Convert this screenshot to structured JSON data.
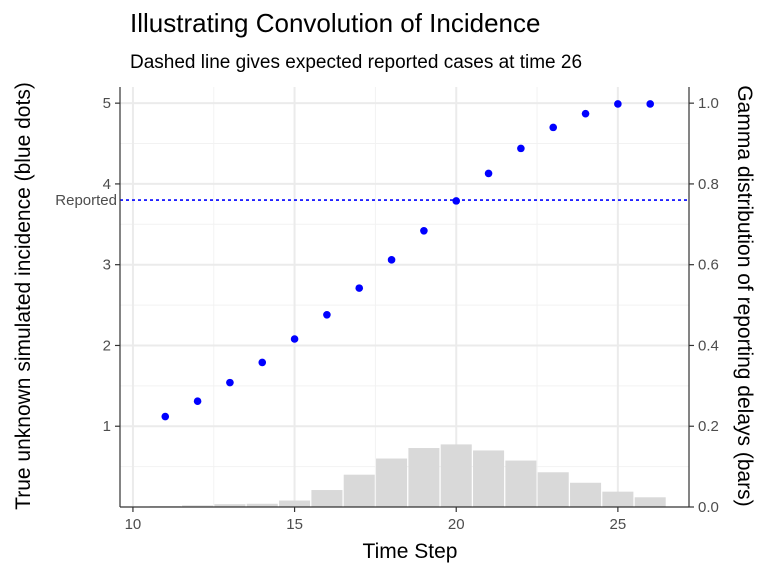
{
  "chart_data": {
    "type": "scatter",
    "title": "Illustrating Convolution of Incidence",
    "subtitle": "Dashed line gives expected reported cases at time 26",
    "xlabel": "Time Step",
    "ylabel": "True unknown simulated incidence (blue dots)",
    "ylabel_right": "Gamma distribution of reporting delays (bars)",
    "xlim": [
      9.6,
      27.2
    ],
    "ylim": [
      0,
      5.2
    ],
    "ylim_right": [
      0,
      1.04
    ],
    "x_ticks": [
      10,
      15,
      20,
      25
    ],
    "y_ticks": [
      1,
      2,
      3,
      4,
      5
    ],
    "y_ticks_right": [
      0.0,
      0.2,
      0.4,
      0.6,
      0.8,
      1.0
    ],
    "y_tick_labels_right": [
      "0.0",
      "0.2",
      "0.4",
      "0.6",
      "0.8",
      "1.0"
    ],
    "grid": true,
    "legend": "none",
    "reference_line": {
      "y": 3.8,
      "label": "Reported",
      "style": "dashed",
      "color": "#0000ff"
    },
    "series": [
      {
        "type": "scatter",
        "color": "#0000ff",
        "x": [
          11,
          12,
          13,
          14,
          15,
          16,
          17,
          18,
          19,
          20,
          21,
          22,
          23,
          24,
          25,
          26
        ],
        "y": [
          1.12,
          1.31,
          1.54,
          1.79,
          2.08,
          2.38,
          2.71,
          3.06,
          3.42,
          3.79,
          4.13,
          4.44,
          4.7,
          4.87,
          4.99,
          4.99
        ]
      },
      {
        "type": "bar",
        "axis": "right",
        "color": "#d9d9d9",
        "x": [
          11,
          12,
          13,
          14,
          15,
          16,
          17,
          18,
          19,
          20,
          21,
          22,
          23,
          24,
          25,
          26
        ],
        "values": [
          0.002,
          0.004,
          0.007,
          0.008,
          0.016,
          0.042,
          0.08,
          0.12,
          0.146,
          0.155,
          0.14,
          0.115,
          0.086,
          0.06,
          0.038,
          0.024
        ]
      }
    ]
  }
}
